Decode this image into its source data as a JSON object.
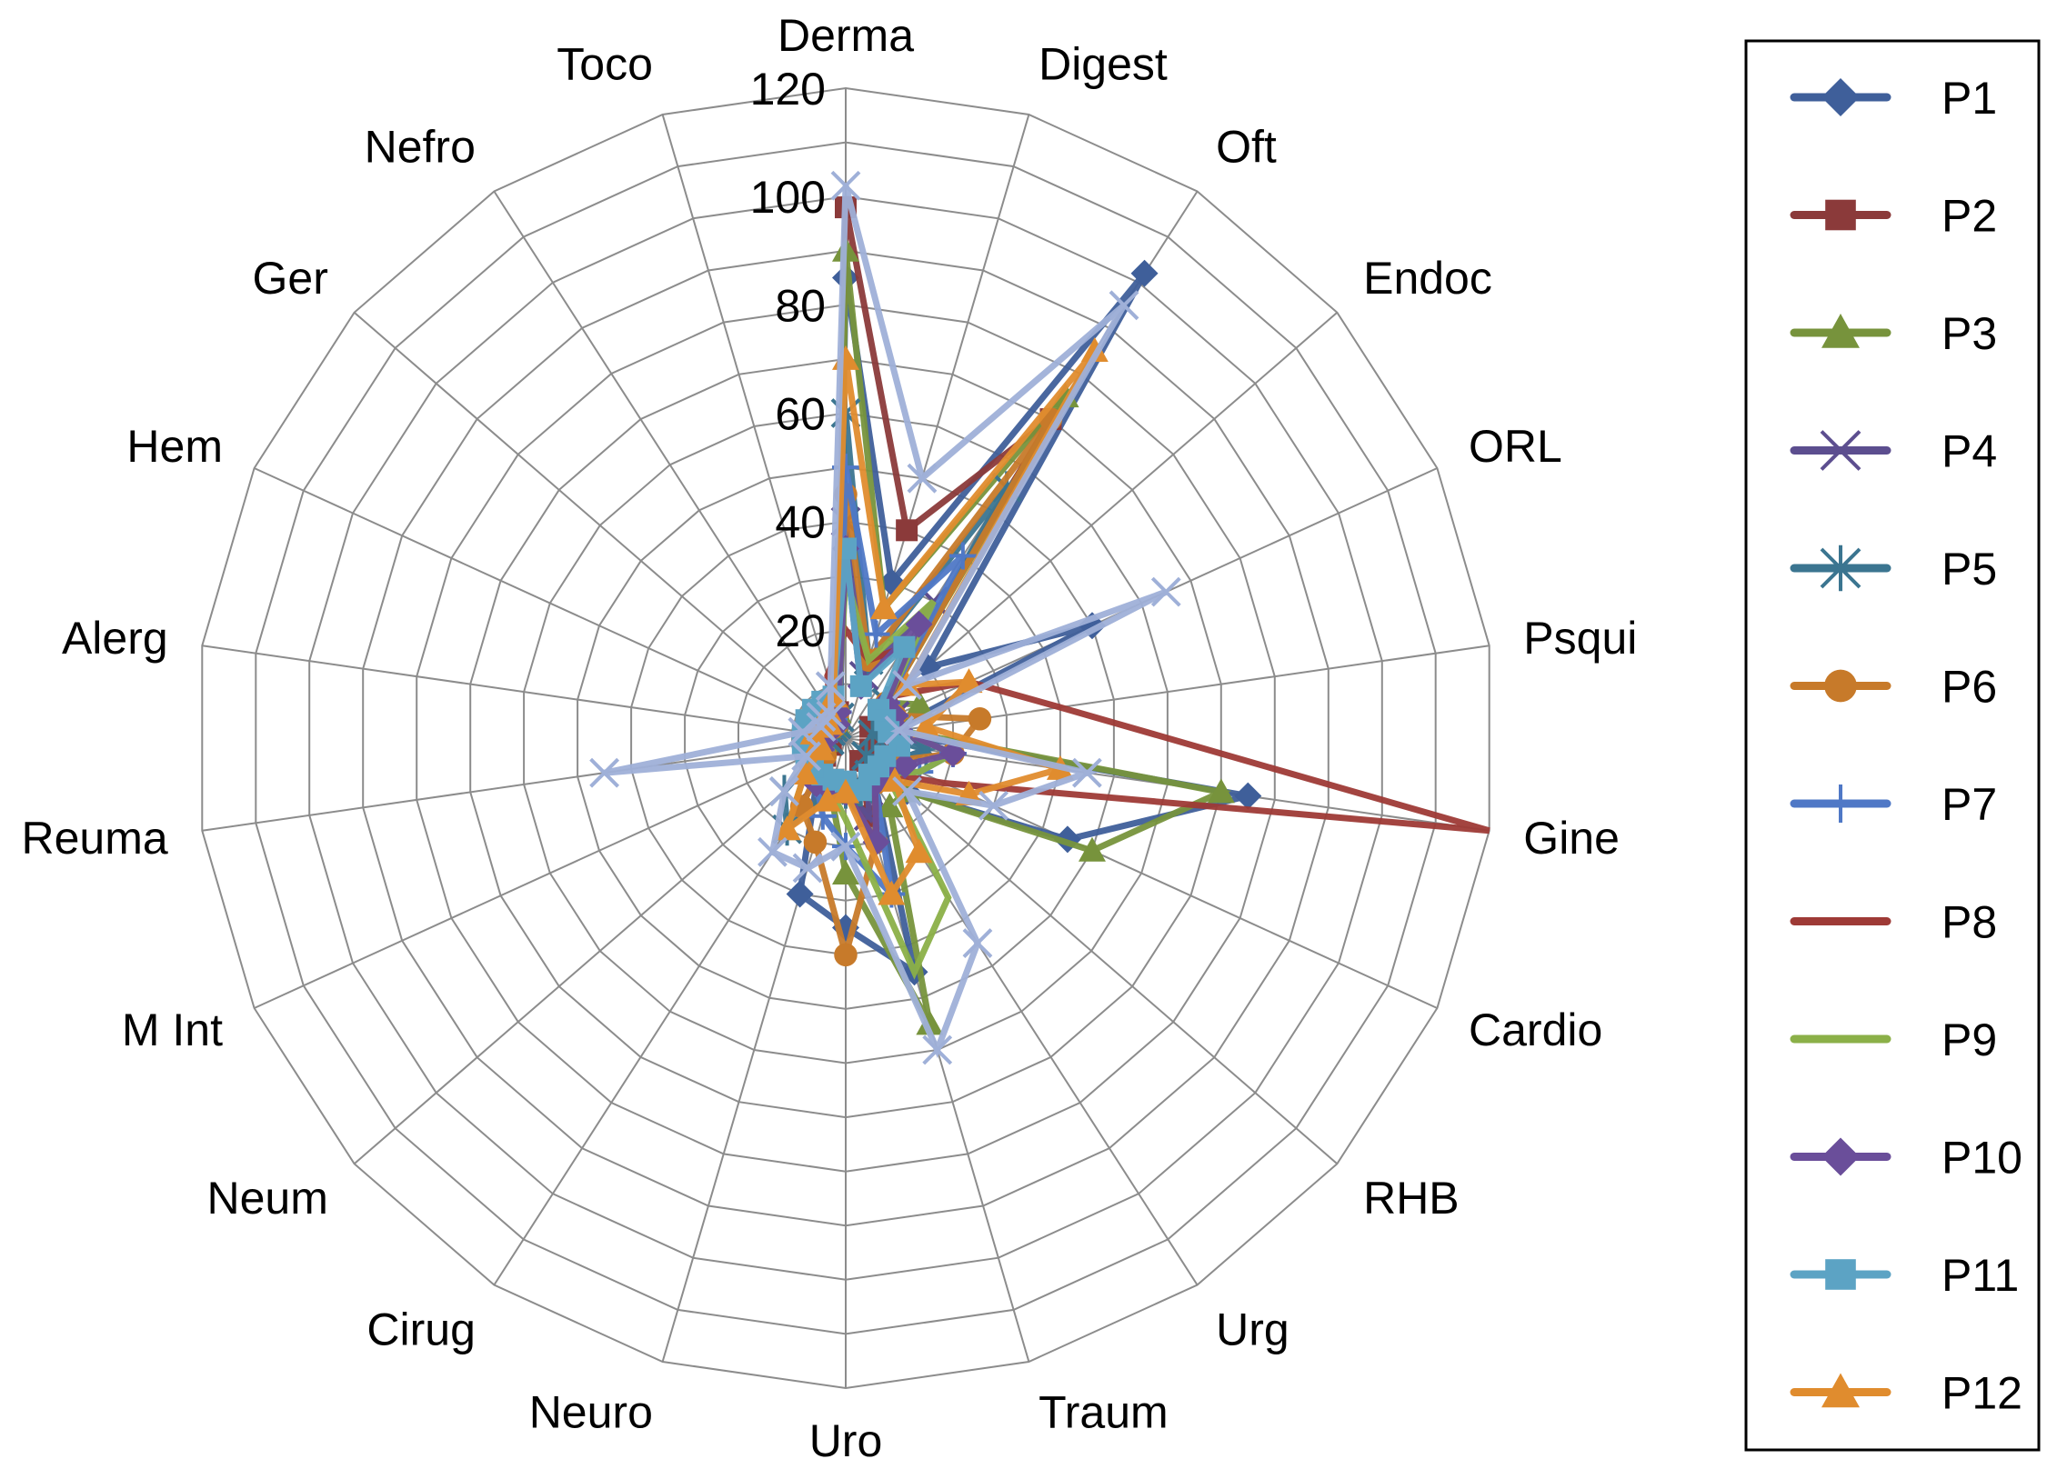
{
  "chart_data": {
    "type": "radar",
    "title": "",
    "categories": [
      "Derma",
      "Digest",
      "Oft",
      "Endoc",
      "ORL",
      "Psqui",
      "Gine",
      "Cardio",
      "RHB",
      "Urg",
      "Traum",
      "Uro",
      "Neuro",
      "Cirug",
      "Neum",
      "M Int",
      "Reuma",
      "Alerg",
      "Hem",
      "Ger",
      "Nefro",
      "Toco"
    ],
    "rlim": [
      0,
      120
    ],
    "ticks": [
      "0",
      "20",
      "40",
      "60",
      "80",
      "100",
      "120"
    ],
    "tick_values": [
      0,
      20,
      40,
      60,
      80,
      100,
      120
    ],
    "grid": true,
    "legend_position": "right",
    "series": [
      {
        "name": "P1",
        "color": "#3f5f9a",
        "marker": "diamond",
        "values": [
          85,
          30,
          102,
          20,
          50,
          8,
          75,
          45,
          15,
          10,
          45,
          35,
          30,
          10,
          8,
          5,
          3,
          5,
          4,
          3,
          3,
          5
        ]
      },
      {
        "name": "P2",
        "color": "#8b3a3a",
        "marker": "square",
        "values": [
          98,
          40,
          70,
          8,
          5,
          8,
          8,
          5,
          8,
          5,
          15,
          10,
          8,
          8,
          5,
          3,
          4,
          5,
          4,
          3,
          3,
          5
        ]
      },
      {
        "name": "P3",
        "color": "#77933c",
        "marker": "triangle",
        "values": [
          90,
          25,
          75,
          10,
          15,
          10,
          70,
          50,
          15,
          15,
          55,
          25,
          10,
          20,
          10,
          5,
          4,
          5,
          4,
          3,
          3,
          5
        ]
      },
      {
        "name": "P4",
        "color": "#5c4e8f",
        "marker": "x",
        "values": [
          40,
          12,
          30,
          10,
          10,
          10,
          15,
          10,
          5,
          8,
          15,
          10,
          10,
          10,
          8,
          5,
          3,
          4,
          3,
          3,
          3,
          4
        ]
      },
      {
        "name": "P5",
        "color": "#3b7590",
        "marker": "star",
        "values": [
          60,
          15,
          55,
          10,
          8,
          5,
          15,
          10,
          5,
          8,
          10,
          10,
          10,
          20,
          15,
          5,
          3,
          4,
          3,
          3,
          3,
          4
        ]
      },
      {
        "name": "P6",
        "color": "#c77a2a",
        "marker": "circle",
        "values": [
          45,
          15,
          70,
          10,
          10,
          25,
          20,
          10,
          8,
          10,
          20,
          40,
          20,
          15,
          5,
          5,
          5,
          5,
          5,
          3,
          3,
          5
        ]
      },
      {
        "name": "P7",
        "color": "#4f78c6",
        "marker": "plus",
        "values": [
          50,
          20,
          40,
          10,
          10,
          10,
          20,
          15,
          10,
          10,
          30,
          20,
          15,
          10,
          8,
          5,
          4,
          5,
          3,
          3,
          4,
          5
        ]
      },
      {
        "name": "P8",
        "color": "#9e3a36",
        "marker": "none",
        "values": [
          20,
          15,
          20,
          12,
          25,
          40,
          120,
          20,
          10,
          10,
          20,
          10,
          10,
          10,
          10,
          5,
          8,
          6,
          5,
          4,
          5,
          12
        ]
      },
      {
        "name": "P9",
        "color": "#8bb048",
        "marker": "none",
        "values": [
          30,
          15,
          30,
          10,
          10,
          10,
          20,
          15,
          10,
          35,
          45,
          15,
          10,
          10,
          10,
          5,
          4,
          5,
          4,
          3,
          3,
          5
        ]
      },
      {
        "name": "P10",
        "color": "#6a4e9a",
        "marker": "diamond",
        "values": [
          35,
          10,
          25,
          10,
          10,
          10,
          20,
          12,
          10,
          10,
          20,
          10,
          10,
          10,
          8,
          5,
          4,
          5,
          4,
          3,
          3,
          5
        ]
      },
      {
        "name": "P11",
        "color": "#5ca3c4",
        "marker": "square",
        "values": [
          35,
          10,
          20,
          8,
          8,
          8,
          10,
          8,
          8,
          8,
          10,
          8,
          8,
          8,
          8,
          8,
          8,
          8,
          8,
          8,
          8,
          8
        ]
      },
      {
        "name": "P12",
        "color": "#e08c2e",
        "marker": "triangle",
        "values": [
          70,
          25,
          85,
          15,
          25,
          15,
          40,
          25,
          12,
          25,
          30,
          10,
          12,
          20,
          10,
          5,
          5,
          6,
          5,
          4,
          6,
          8
        ]
      },
      {
        "name": "",
        "color": "#9fb0d8",
        "marker": "x",
        "values": [
          102,
          50,
          95,
          15,
          65,
          10,
          45,
          30,
          15,
          45,
          60,
          20,
          25,
          25,
          15,
          8,
          45,
          8,
          5,
          6,
          5,
          10
        ]
      }
    ]
  }
}
